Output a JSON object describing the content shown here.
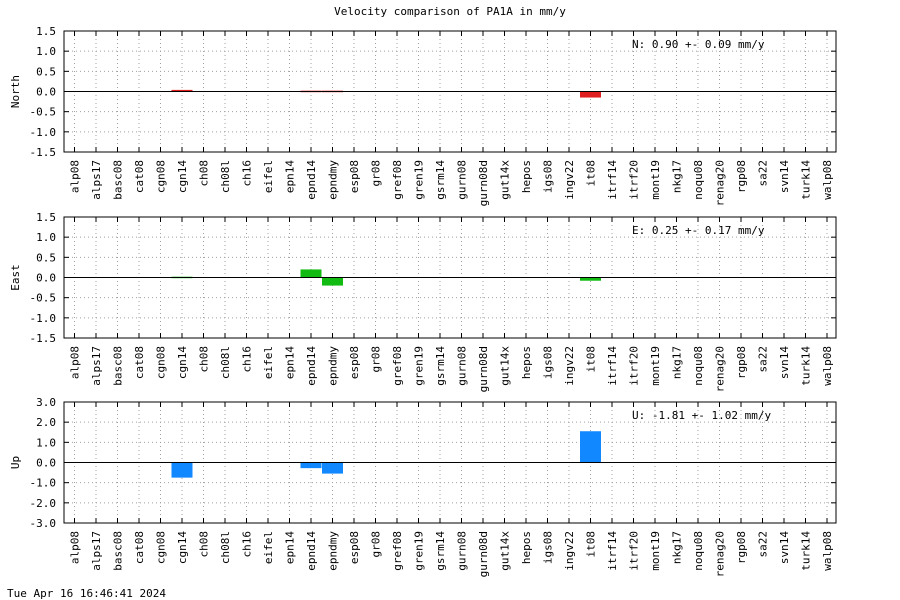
{
  "title": "Velocity comparison of PA1A in mm/y",
  "timestamp": "Tue Apr 16 16:46:41 2024",
  "chart_data": {
    "type": "bar",
    "categories": [
      "alp08",
      "alps17",
      "basc08",
      "cat08",
      "cgn08",
      "cgn14",
      "ch08",
      "ch08l",
      "ch16",
      "eifel",
      "epn14",
      "epnd14",
      "epndmy",
      "esp08",
      "gr08",
      "gref08",
      "gren19",
      "gsrm14",
      "gurn08",
      "gurn08d",
      "gut14x",
      "hepos",
      "igs08",
      "ingv22",
      "it08",
      "itrf14",
      "itrf20",
      "mont19",
      "nkg17",
      "noqu08",
      "renag20",
      "rgp08",
      "sa22",
      "svn14",
      "turk14",
      "walp08"
    ],
    "grid": true,
    "panels": [
      {
        "component": "North",
        "ylabel": "North",
        "color": "#e02020",
        "ylim": [
          -1.5,
          1.5
        ],
        "yticks": [
          "1.5",
          "1.0",
          "0.5",
          "0.0",
          "-0.5",
          "-1.0",
          "-1.5"
        ],
        "annotation": "N:   0.90 +-  0.09 mm/y",
        "values": [
          0,
          0,
          0,
          0,
          0,
          0.04,
          0,
          0,
          0,
          0,
          0,
          0.02,
          0.02,
          0,
          0,
          0,
          0,
          0,
          0,
          0,
          0,
          0,
          0,
          0,
          -0.15,
          0,
          0,
          0,
          0,
          0,
          0,
          0,
          0,
          0,
          0,
          0
        ]
      },
      {
        "component": "East",
        "ylabel": "East",
        "color": "#11bb11",
        "ylim": [
          -1.5,
          1.5
        ],
        "yticks": [
          "1.5",
          "1.0",
          "0.5",
          "0.0",
          "-0.5",
          "-1.0",
          "-1.5"
        ],
        "annotation": "E:   0.25 +-  0.17 mm/y",
        "values": [
          0,
          0,
          0,
          0,
          0,
          0.02,
          0,
          0,
          0,
          0,
          0,
          0.2,
          -0.2,
          0,
          0,
          0,
          0,
          0,
          0,
          0,
          0,
          0,
          0,
          0,
          -0.08,
          0,
          0,
          0,
          0,
          0,
          0,
          0,
          0,
          0,
          0,
          0
        ]
      },
      {
        "component": "Up",
        "ylabel": "Up",
        "color": "#1188ff",
        "ylim": [
          -3.0,
          3.0
        ],
        "yticks": [
          "3.0",
          "2.0",
          "1.0",
          "0.0",
          "-1.0",
          "-2.0",
          "-3.0"
        ],
        "annotation": "U:  -1.81 +-  1.02 mm/y",
        "values": [
          0,
          0,
          0,
          0,
          0,
          -0.75,
          0,
          0,
          0,
          0,
          0,
          -0.28,
          -0.55,
          0,
          0,
          0,
          0,
          0,
          0,
          0,
          0,
          0,
          0,
          0,
          1.55,
          0,
          0,
          0,
          0,
          0,
          0,
          0,
          0,
          0,
          0,
          0
        ]
      }
    ]
  }
}
